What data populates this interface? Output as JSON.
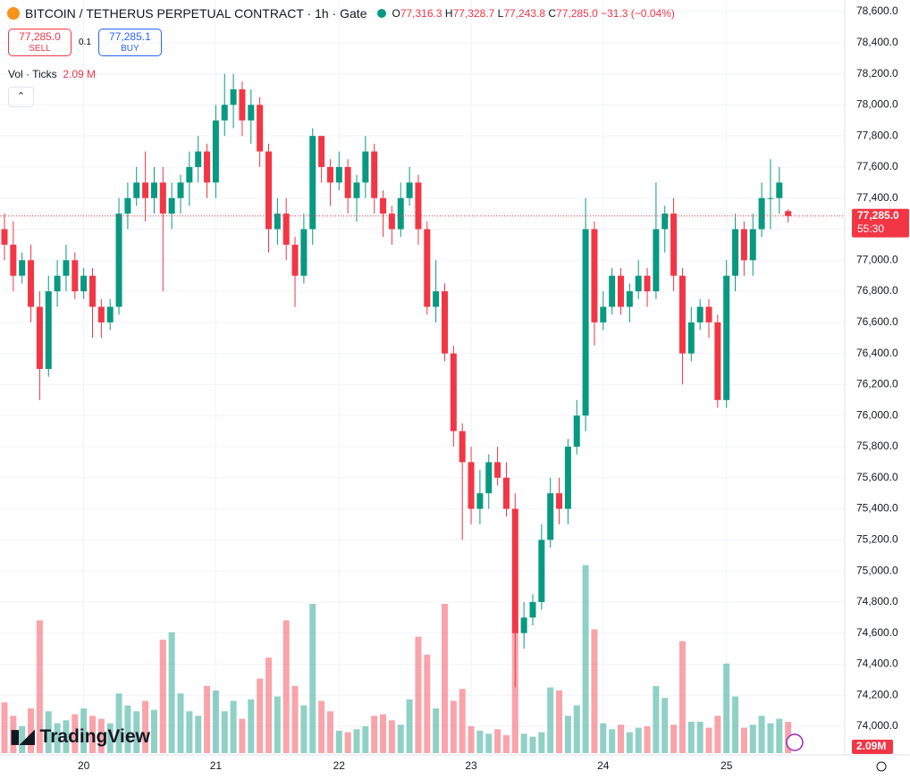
{
  "header": {
    "symbol": "BITCOIN / TETHERUS PERPETUAL CONTRACT · 1h · Gate",
    "o_label": "O",
    "o_value": "77,316.3",
    "h_label": "H",
    "h_value": "77,328.7",
    "l_label": "L",
    "l_value": "77,243.8",
    "c_label": "C",
    "c_value": "77,285.0",
    "change": "−31.3 (−0.04%)",
    "sell_price": "77,285.0",
    "sell": "SELL",
    "spread": "0.1",
    "buy_price": "77,285.1",
    "buy": "BUY",
    "vol_title": "Vol · Ticks",
    "vol_value": "2.09 M",
    "brand": "TradingView"
  },
  "chart_data": {
    "type": "candlestick",
    "categories": [
      null,
      null,
      null,
      null,
      null,
      null,
      null,
      null,
      null,
      "20",
      null,
      null,
      null,
      null,
      null,
      null,
      null,
      null,
      null,
      null,
      null,
      null,
      null,
      null,
      "21",
      null,
      null,
      null,
      null,
      null,
      null,
      null,
      null,
      null,
      null,
      null,
      null,
      null,
      "22",
      null,
      null,
      null,
      null,
      null,
      null,
      null,
      null,
      null,
      null,
      null,
      null,
      null,
      null,
      "23",
      null,
      null,
      null,
      null,
      null,
      null,
      null,
      null,
      null,
      null,
      null,
      null,
      null,
      null,
      "24",
      null,
      null,
      null,
      null,
      null,
      null,
      null,
      null,
      null,
      null,
      null,
      null,
      null,
      "25",
      null,
      null,
      null,
      null,
      null,
      null,
      null
    ],
    "open": [
      77200,
      77100,
      76900,
      77000,
      76700,
      76300,
      76800,
      76900,
      77000,
      76800,
      76900,
      76700,
      76600,
      76700,
      77300,
      77400,
      77500,
      77400,
      77500,
      77300,
      77400,
      77500,
      77600,
      77700,
      77500,
      77900,
      78000,
      78100,
      77900,
      78000,
      77700,
      77200,
      77300,
      77100,
      76900,
      77200,
      77800,
      77600,
      77500,
      77600,
      77400,
      77500,
      77700,
      77400,
      77300,
      77200,
      77400,
      77500,
      77200,
      76700,
      76800,
      76400,
      75900,
      75700,
      75400,
      75500,
      75700,
      75600,
      75400,
      74600,
      74700,
      74800,
      75200,
      75500,
      75400,
      75800,
      76000,
      77200,
      76600,
      76700,
      76900,
      76700,
      76800,
      76900,
      76800,
      77200,
      77300,
      76900,
      76400,
      76600,
      76700,
      76600,
      76100,
      76900,
      77200,
      77000,
      77200,
      77400,
      77400,
      77316.3
    ],
    "high": [
      77300,
      77250,
      77050,
      77100,
      76800,
      76900,
      77000,
      77100,
      77050,
      76950,
      76950,
      76750,
      76750,
      77400,
      77500,
      77600,
      77700,
      77600,
      77600,
      77500,
      77550,
      77700,
      77800,
      77750,
      78000,
      78200,
      78200,
      78150,
      78100,
      78050,
      77750,
      77400,
      77400,
      77150,
      77300,
      77850,
      77800,
      77650,
      77700,
      77650,
      77550,
      77800,
      77750,
      77450,
      77350,
      77500,
      77600,
      77550,
      77250,
      77000,
      76850,
      76450,
      75950,
      75800,
      75650,
      75750,
      75800,
      75700,
      75500,
      74800,
      74850,
      75300,
      75600,
      75600,
      75850,
      76100,
      77400,
      77250,
      76800,
      76950,
      76950,
      76850,
      77000,
      76950,
      77500,
      77350,
      77400,
      76950,
      76700,
      76750,
      76750,
      76650,
      77000,
      77300,
      77250,
      77300,
      77500,
      77650,
      77600,
      77328.7
    ],
    "low": [
      77000,
      76800,
      76850,
      76600,
      76100,
      76250,
      76700,
      76800,
      76750,
      76750,
      76500,
      76500,
      76550,
      76650,
      77200,
      77350,
      77250,
      77300,
      76800,
      77200,
      77300,
      77350,
      77500,
      77400,
      77400,
      77800,
      77850,
      77800,
      77750,
      77600,
      77050,
      77100,
      77000,
      76700,
      76850,
      77100,
      77500,
      77350,
      77450,
      77300,
      77250,
      77400,
      77300,
      77150,
      77100,
      77150,
      77350,
      77100,
      76650,
      76600,
      76350,
      75800,
      75200,
      75300,
      75300,
      75400,
      75550,
      75350,
      74250,
      74500,
      74650,
      74750,
      75150,
      75300,
      75300,
      75750,
      75900,
      76450,
      76550,
      76650,
      76650,
      76600,
      76750,
      76700,
      76750,
      77050,
      76800,
      76200,
      76350,
      76550,
      76500,
      76050,
      76050,
      76800,
      76900,
      76900,
      77150,
      77200,
      77300,
      77243.8
    ],
    "close": [
      77100,
      76900,
      77000,
      76700,
      76300,
      76800,
      76900,
      77000,
      76800,
      76900,
      76700,
      76600,
      76700,
      77300,
      77400,
      77500,
      77400,
      77500,
      77300,
      77400,
      77500,
      77600,
      77700,
      77500,
      77900,
      78000,
      78100,
      77900,
      78000,
      77700,
      77200,
      77300,
      77100,
      76900,
      77200,
      77800,
      77600,
      77500,
      77600,
      77400,
      77500,
      77700,
      77400,
      77300,
      77200,
      77400,
      77500,
      77200,
      76700,
      76800,
      76400,
      75900,
      75700,
      75400,
      75500,
      75700,
      75600,
      75400,
      74600,
      74700,
      74800,
      75200,
      75500,
      75400,
      75800,
      76000,
      77200,
      76600,
      76700,
      76900,
      76700,
      76800,
      76900,
      76800,
      77200,
      77300,
      76900,
      76400,
      76600,
      76700,
      76600,
      76100,
      76900,
      77200,
      77000,
      77200,
      77400,
      77400,
      77500,
      77285.0
    ],
    "volume": [
      3.4,
      2.5,
      1.8,
      3.0,
      8.9,
      2.8,
      2.0,
      2.2,
      2.6,
      3.0,
      2.5,
      2.3,
      2.0,
      4.0,
      3.2,
      2.8,
      3.5,
      2.9,
      7.6,
      8.1,
      4.0,
      2.8,
      2.5,
      4.5,
      4.2,
      2.8,
      3.5,
      2.3,
      3.6,
      5.0,
      6.4,
      3.8,
      8.9,
      4.5,
      3.2,
      10.0,
      3.5,
      2.8,
      1.5,
      1.4,
      1.6,
      1.8,
      2.5,
      2.6,
      2.2,
      1.9,
      3.6,
      7.8,
      6.6,
      3.0,
      10.0,
      3.5,
      4.3,
      1.8,
      1.5,
      1.3,
      1.6,
      1.2,
      8.8,
      1.3,
      1.1,
      1.4,
      4.4,
      4.2,
      2.5,
      3.2,
      12.6,
      8.3,
      2.0,
      1.6,
      1.9,
      1.4,
      1.7,
      1.8,
      4.5,
      3.7,
      1.9,
      7.5,
      2.1,
      2.1,
      1.7,
      2.5,
      6.0,
      3.8,
      1.7,
      1.9,
      2.5,
      2.0,
      2.3,
      2.09
    ],
    "up_color": "#089981",
    "down_color": "#f23645",
    "ylim": [
      73816,
      78675
    ],
    "yticks": [
      {
        "value": 74000,
        "label": "74,000.0"
      },
      {
        "value": 74200,
        "label": "74,200.0"
      },
      {
        "value": 74400,
        "label": "74,400.0"
      },
      {
        "value": 74600,
        "label": "74,600.0"
      },
      {
        "value": 74800,
        "label": "74,800.0"
      },
      {
        "value": 75000,
        "label": "75,000.0"
      },
      {
        "value": 75200,
        "label": "75,200.0"
      },
      {
        "value": 75400,
        "label": "75,400.0"
      },
      {
        "value": 75600,
        "label": "75,600.0"
      },
      {
        "value": 75800,
        "label": "75,800.0"
      },
      {
        "value": 76000,
        "label": "76,000.0"
      },
      {
        "value": 76200,
        "label": "76,200.0"
      },
      {
        "value": 76400,
        "label": "76,400.0"
      },
      {
        "value": 76600,
        "label": "76,600.0"
      },
      {
        "value": 76800,
        "label": "76,800.0"
      },
      {
        "value": 77000,
        "label": "77,000.0"
      },
      {
        "value": 77200,
        "label": "77,200.0"
      },
      {
        "value": 77400,
        "label": "77,400.0"
      },
      {
        "value": 77600,
        "label": "77,600.0"
      },
      {
        "value": 77800,
        "label": "77,800.0"
      },
      {
        "value": 78000,
        "label": "78,000.0"
      },
      {
        "value": 78200,
        "label": "78,200.0"
      },
      {
        "value": 78400,
        "label": "78,400.0"
      },
      {
        "value": 78600,
        "label": "78,600.0"
      }
    ],
    "grid": true,
    "last_price": {
      "value": 77285.0,
      "label": "77,285.0"
    },
    "countdown": "55:30",
    "volume_label": "2.09M"
  }
}
